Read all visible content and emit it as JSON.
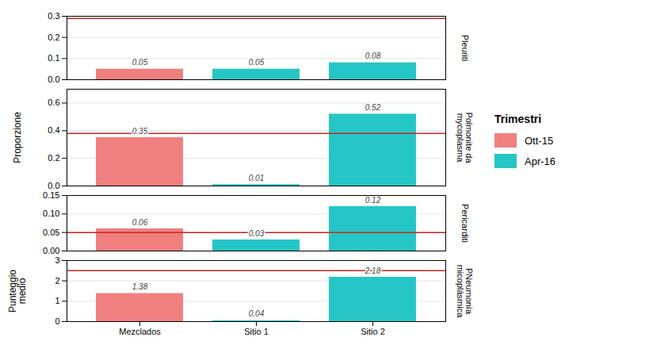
{
  "chart_data": [
    {
      "type": "bar",
      "title": "Pleuriti",
      "categories": [
        "Mezclados",
        "Sitio 1",
        "Sitio 2"
      ],
      "series": [
        {
          "name": "Ott-15",
          "color": "#F08080",
          "values": [
            0.05,
            null,
            null
          ]
        },
        {
          "name": "Apr-16",
          "color": "#26C6C6",
          "values": [
            null,
            0.05,
            0.08
          ]
        }
      ],
      "ref_line": {
        "value": 0.29,
        "color": "#CC2222"
      },
      "ylim": [
        0.0,
        0.3
      ],
      "yticks": [
        {
          "value": 0,
          "label": "0.0"
        },
        0.1,
        0.2,
        0.3
      ],
      "grid": true,
      "data_labels": true,
      "tick_labels": "y",
      "legend": "right",
      "legend_title": "Trimestri"
    },
    {
      "type": "bar",
      "title": "Polmonite da\nmycoplasma",
      "ylabel": "Proporzione",
      "categories": [
        "Mezclados",
        "Sitio 1",
        "Sitio 2"
      ],
      "series": [
        {
          "name": "Ott-15",
          "color": "#F08080",
          "values": [
            0.35,
            null,
            null
          ]
        },
        {
          "name": "Apr-16",
          "color": "#26C6C6",
          "values": [
            null,
            0.01,
            0.52
          ]
        }
      ],
      "ref_line": {
        "value": 0.38,
        "color": "#CC2222"
      },
      "ylim": [
        0.0,
        0.7
      ],
      "yticks": [
        {
          "value": 0,
          "label": "0.0"
        },
        0.2,
        0.4,
        0.6
      ],
      "grid": true,
      "data_labels": true,
      "tick_labels": "y"
    },
    {
      "type": "bar",
      "title": "Pericarditi",
      "categories": [
        "Mezclados",
        "Sitio 1",
        "Sitio 2"
      ],
      "series": [
        {
          "name": "Ott-15",
          "color": "#F08080",
          "values": [
            0.06,
            null,
            null
          ]
        },
        {
          "name": "Apr-16",
          "color": "#26C6C6",
          "values": [
            null,
            0.03,
            0.12
          ]
        }
      ],
      "ref_line": {
        "value": 0.05,
        "color": "#CC2222"
      },
      "ylim": [
        0.0,
        0.15
      ],
      "yticks": [
        {
          "value": 0,
          "label": "0.00"
        },
        0.05,
        {
          "value": 0.1,
          "label": "0.10"
        },
        0.15
      ],
      "grid": true,
      "data_labels": true,
      "tick_labels": "y"
    },
    {
      "type": "bar",
      "title": "PNeumonía\nmicoplásmica",
      "ylabel": "Punteggio\nmedio",
      "categories": [
        "Mezclados",
        "Sitio 1",
        "Sitio 2"
      ],
      "series": [
        {
          "name": "Ott-15",
          "color": "#F08080",
          "values": [
            1.38,
            null,
            null
          ]
        },
        {
          "name": "Apr-16",
          "color": "#26C6C6",
          "values": [
            null,
            0.04,
            2.18
          ]
        }
      ],
      "ref_line": {
        "value": 2.5,
        "color": "#CC2222"
      },
      "ylim": [
        0,
        3
      ],
      "yticks": [
        0,
        1,
        2,
        3
      ],
      "grid": true,
      "data_labels": true
    }
  ]
}
